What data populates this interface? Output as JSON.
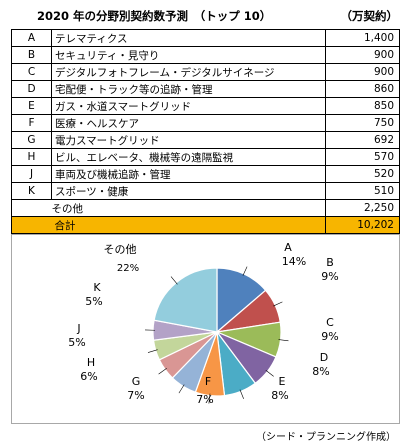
{
  "title": "2020 年の分野別契約数予測　（トップ 10）",
  "unit": "（万契約）",
  "table": {
    "rows": [
      {
        "code": "A",
        "name": "テレマティクス",
        "value": "1,400"
      },
      {
        "code": "B",
        "name": "セキュリティ・見守り",
        "value": "900"
      },
      {
        "code": "C",
        "name": "デジタルフォトフレーム・デジタルサイネージ",
        "value": "900"
      },
      {
        "code": "D",
        "name": "宅配便・トラック等の追跡・管理",
        "value": "860"
      },
      {
        "code": "E",
        "name": "ガス・水道スマートグリッド",
        "value": "850"
      },
      {
        "code": "F",
        "name": "医療・ヘルスケア",
        "value": "750"
      },
      {
        "code": "G",
        "name": "電力スマートグリッド",
        "value": "692"
      },
      {
        "code": "H",
        "name": "ビル、エレベータ、機械等の遠隔監視",
        "value": "570"
      },
      {
        "code": "J",
        "name": "車両及び機械追跡・管理",
        "value": "520"
      },
      {
        "code": "K",
        "name": "スポーツ・健康",
        "value": "510"
      }
    ],
    "other": {
      "name": "その他",
      "value": "2,250"
    },
    "total": {
      "name": "合計",
      "value": "10,202"
    }
  },
  "chart_data": {
    "type": "pie",
    "categories": [
      "A",
      "B",
      "C",
      "D",
      "E",
      "F",
      "G",
      "H",
      "J",
      "K",
      "その他"
    ],
    "values": [
      1400,
      900,
      900,
      860,
      850,
      750,
      692,
      570,
      520,
      510,
      2250
    ],
    "labels": [
      "14%",
      "9%",
      "9%",
      "8%",
      "8%",
      "7%",
      "7%",
      "6%",
      "5%",
      "5%",
      "22%"
    ],
    "colors": [
      "#4f81bd",
      "#c0504d",
      "#9bbb59",
      "#8064a2",
      "#4bacc6",
      "#f79646",
      "#95b3d7",
      "#d99694",
      "#c3d69b",
      "#b3a2c7",
      "#93cddd"
    ]
  },
  "source": "（シード・プランニング作成）"
}
